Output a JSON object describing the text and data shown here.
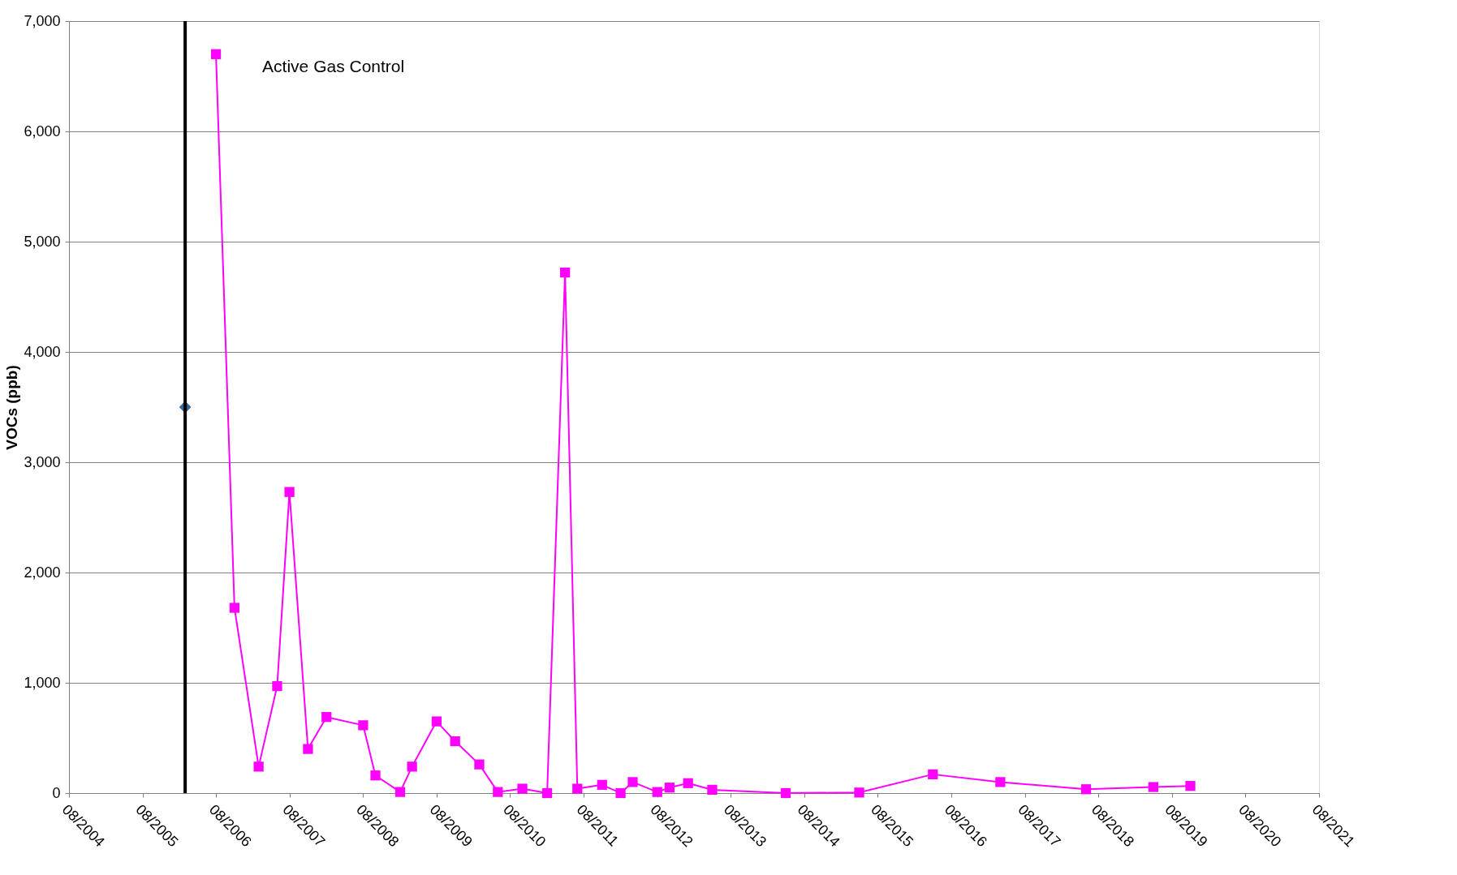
{
  "chart_data": {
    "type": "line",
    "ylabel": "VOCs (ppb)",
    "xlim": [
      "2004-08",
      "2021-08"
    ],
    "ylim": [
      0,
      7000
    ],
    "xticks": [
      {
        "value": "2004-08",
        "label": "08/2004"
      },
      {
        "value": "2005-08",
        "label": "08/2005"
      },
      {
        "value": "2006-08",
        "label": "08/2006"
      },
      {
        "value": "2007-08",
        "label": "08/2007"
      },
      {
        "value": "2008-08",
        "label": "08/2008"
      },
      {
        "value": "2009-08",
        "label": "08/2009"
      },
      {
        "value": "2010-08",
        "label": "08/2010"
      },
      {
        "value": "2011-08",
        "label": "08/2011"
      },
      {
        "value": "2012-08",
        "label": "08/2012"
      },
      {
        "value": "2013-08",
        "label": "08/2013"
      },
      {
        "value": "2014-08",
        "label": "08/2014"
      },
      {
        "value": "2015-08",
        "label": "08/2015"
      },
      {
        "value": "2016-08",
        "label": "08/2016"
      },
      {
        "value": "2017-08",
        "label": "08/2017"
      },
      {
        "value": "2018-08",
        "label": "08/2018"
      },
      {
        "value": "2019-08",
        "label": "08/2019"
      },
      {
        "value": "2020-08",
        "label": "08/2020"
      },
      {
        "value": "2021-08",
        "label": "08/2021"
      }
    ],
    "yticks": [
      {
        "value": 0,
        "label": "0"
      },
      {
        "value": 1000,
        "label": "1,000"
      },
      {
        "value": 2000,
        "label": "2,000"
      },
      {
        "value": 3000,
        "label": "3,000"
      },
      {
        "value": 4000,
        "label": "4,000"
      },
      {
        "value": 5000,
        "label": "5,000"
      },
      {
        "value": 6000,
        "label": "6,000"
      },
      {
        "value": 7000,
        "label": "7,000"
      }
    ],
    "grid": "y",
    "series": [
      {
        "type": "line",
        "color": "#ff00ff",
        "marker": "square",
        "line_style": "solid",
        "x": [
          "2006-08",
          "2006-11",
          "2007-03",
          "2007-06",
          "2007-08",
          "2007-11",
          "2008-02",
          "2008-08",
          "2008-10",
          "2009-02",
          "2009-04",
          "2009-08",
          "2009-11",
          "2010-03",
          "2010-06",
          "2010-10",
          "2011-02",
          "2011-05",
          "2011-07",
          "2011-11",
          "2012-02",
          "2012-04",
          "2012-08",
          "2012-10",
          "2013-01",
          "2013-05",
          "2014-05",
          "2015-05",
          "2016-05",
          "2017-04",
          "2018-06",
          "2019-05",
          "2019-11"
        ],
        "values": [
          6700,
          1680,
          240,
          970,
          2730,
          400,
          690,
          615,
          160,
          10,
          240,
          650,
          470,
          260,
          10,
          40,
          0,
          4720,
          40,
          75,
          0,
          100,
          10,
          50,
          90,
          30,
          0,
          5,
          170,
          100,
          35,
          55,
          65
        ]
      },
      {
        "type": "scatter",
        "color": "#3a6699",
        "marker": "diamond",
        "x": [
          "2006-03"
        ],
        "values": [
          3500
        ]
      }
    ],
    "ref_lines": [
      {
        "axis": "x",
        "value": "2006-03",
        "label": "Active Gas Control",
        "color": "#000000",
        "line_style": "solid"
      }
    ]
  }
}
